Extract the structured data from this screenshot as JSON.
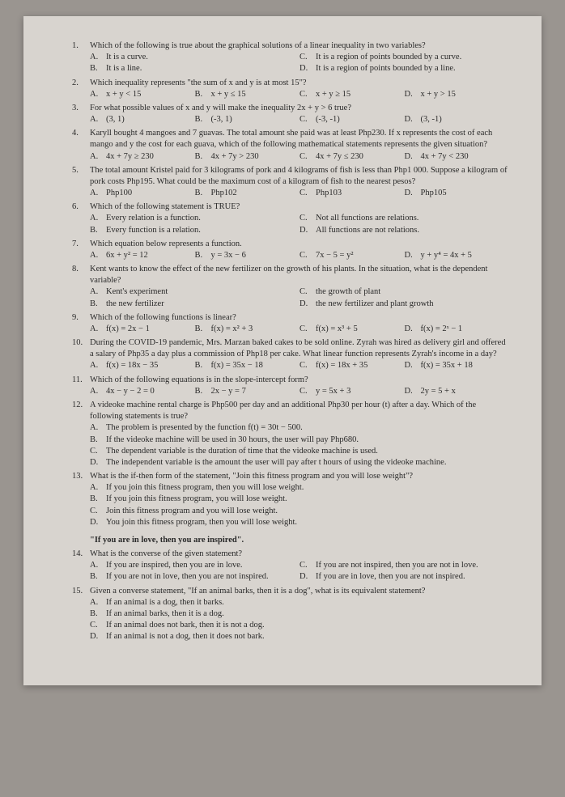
{
  "questions": [
    {
      "num": "1.",
      "text": "Which of the following is true about the graphical solutions of a linear inequality in two variables?",
      "choices": [
        {
          "label": "A.",
          "text": "It is a curve."
        },
        {
          "label": "B.",
          "text": "It is a line."
        },
        {
          "label": "C.",
          "text": "It is a region of points bounded by a curve."
        },
        {
          "label": "D.",
          "text": "It is a region of points bounded by a line."
        }
      ],
      "layout": "2col"
    },
    {
      "num": "2.",
      "text": "Which inequality represents \"the sum of x and y is at most 15\"?",
      "choices": [
        {
          "label": "A.",
          "text": "x + y < 15"
        },
        {
          "label": "B.",
          "text": "x + y ≤ 15"
        },
        {
          "label": "C.",
          "text": "x + y ≥ 15"
        },
        {
          "label": "D.",
          "text": "x + y > 15"
        }
      ],
      "layout": "4col"
    },
    {
      "num": "3.",
      "text": "For what possible values of x and y will make the inequality 2x + y > 6 true?",
      "choices": [
        {
          "label": "A.",
          "text": "(3, 1)"
        },
        {
          "label": "B.",
          "text": "(-3, 1)"
        },
        {
          "label": "C.",
          "text": "(-3, -1)"
        },
        {
          "label": "D.",
          "text": "(3, -1)"
        }
      ],
      "layout": "4col"
    },
    {
      "num": "4.",
      "text": "Karyll bought 4 mangoes and 7 guavas. The total amount she paid was at least Php230. If x represents the cost of each mango and y the cost for each guava, which of the following mathematical statements represents the given situation?",
      "choices": [
        {
          "label": "A.",
          "text": "4x + 7y ≥ 230"
        },
        {
          "label": "B.",
          "text": "4x + 7y > 230"
        },
        {
          "label": "C.",
          "text": "4x + 7y ≤ 230"
        },
        {
          "label": "D.",
          "text": "4x + 7y < 230"
        }
      ],
      "layout": "4col"
    },
    {
      "num": "5.",
      "text": "The total amount Kristel paid for 3 kilograms of pork and 4 kilograms of fish is less than Php1 000. Suppose a kilogram of pork costs Php195. What could be the maximum cost of a kilogram of fish to the nearest pesos?",
      "choices": [
        {
          "label": "A.",
          "text": "Php100"
        },
        {
          "label": "B.",
          "text": "Php102"
        },
        {
          "label": "C.",
          "text": "Php103"
        },
        {
          "label": "D.",
          "text": "Php105"
        }
      ],
      "layout": "4col"
    },
    {
      "num": "6.",
      "text": "Which of the following statement is TRUE?",
      "choices": [
        {
          "label": "A.",
          "text": "Every relation is a function."
        },
        {
          "label": "B.",
          "text": "Every function is a relation."
        },
        {
          "label": "C.",
          "text": "Not all functions are relations."
        },
        {
          "label": "D.",
          "text": "All functions are not relations."
        }
      ],
      "layout": "2col"
    },
    {
      "num": "7.",
      "text": "Which equation below represents a function.",
      "choices": [
        {
          "label": "A.",
          "text": "6x + y² = 12"
        },
        {
          "label": "B.",
          "text": "y = 3x − 6"
        },
        {
          "label": "C.",
          "text": "7x − 5 = y²"
        },
        {
          "label": "D.",
          "text": "y + y⁴ = 4x + 5"
        }
      ],
      "layout": "4col"
    },
    {
      "num": "8.",
      "text": "Kent wants to know the effect of the new fertilizer on the growth of his plants. In the situation, what is the dependent variable?",
      "choices": [
        {
          "label": "A.",
          "text": "Kent's experiment"
        },
        {
          "label": "B.",
          "text": "the new fertilizer"
        },
        {
          "label": "C.",
          "text": "the growth of plant"
        },
        {
          "label": "D.",
          "text": "the new fertilizer and plant growth"
        }
      ],
      "layout": "2col"
    },
    {
      "num": "9.",
      "text": "Which of the following functions is linear?",
      "choices": [
        {
          "label": "A.",
          "text": "f(x) = 2x − 1"
        },
        {
          "label": "B.",
          "text": "f(x) = x² + 3"
        },
        {
          "label": "C.",
          "text": "f(x) = x³ + 5"
        },
        {
          "label": "D.",
          "text": "f(x) = 2ˣ − 1"
        }
      ],
      "layout": "4col"
    },
    {
      "num": "10.",
      "text": "During the COVID-19 pandemic, Mrs. Marzan baked cakes to be sold online. Zyrah was hired as delivery girl and offered a salary of Php35 a day plus a commission of Php18 per cake. What linear function represents Zyrah's income in a day?",
      "choices": [
        {
          "label": "A.",
          "text": "f(x) = 18x − 35"
        },
        {
          "label": "B.",
          "text": "f(x) = 35x − 18"
        },
        {
          "label": "C.",
          "text": "f(x) = 18x + 35"
        },
        {
          "label": "D.",
          "text": "f(x) = 35x + 18"
        }
      ],
      "layout": "4col"
    },
    {
      "num": "11.",
      "text": "Which of the following equations is in the slope-intercept form?",
      "choices": [
        {
          "label": "A.",
          "text": "4x − y − 2 = 0"
        },
        {
          "label": "B.",
          "text": "2x − y = 7"
        },
        {
          "label": "C.",
          "text": "y = 5x + 3"
        },
        {
          "label": "D.",
          "text": "2y = 5 + x"
        }
      ],
      "layout": "4col"
    },
    {
      "num": "12.",
      "text": "A videoke machine rental charge is Php500 per day and an additional Php30 per hour (t) after a day. Which of the following statements is true?",
      "choices": [
        {
          "label": "A.",
          "text": "The problem is presented by the function f(t) = 30t − 500."
        },
        {
          "label": "B.",
          "text": "If the videoke machine will be used in 30 hours, the user will pay Php680."
        },
        {
          "label": "C.",
          "text": "The dependent variable is the duration of time that the videoke machine is used."
        },
        {
          "label": "D.",
          "text": "The independent variable is the amount the user will pay after t hours of using the videoke machine."
        }
      ],
      "layout": "1col"
    },
    {
      "num": "13.",
      "text": "What is the if-then form of the statement, \"Join this fitness program and you will lose weight\"?",
      "choices": [
        {
          "label": "A.",
          "text": "If you join this fitness program, then you will lose weight."
        },
        {
          "label": "B.",
          "text": "If you join this fitness program, you will lose weight."
        },
        {
          "label": "C.",
          "text": "Join this fitness program and you will lose weight."
        },
        {
          "label": "D.",
          "text": "You join this fitness program, then you will lose weight."
        }
      ],
      "layout": "1col"
    }
  ],
  "statement14": "\"If you are in love, then you are inspired\".",
  "q14": {
    "num": "14.",
    "text": "What is the converse of the given statement?",
    "choices": [
      {
        "label": "A.",
        "text": "If you are inspired, then you are in love."
      },
      {
        "label": "B.",
        "text": "If you are not in love, then you are not inspired."
      },
      {
        "label": "C.",
        "text": "If you are not inspired, then you are not in love."
      },
      {
        "label": "D.",
        "text": "If you are in love, then you are not inspired."
      }
    ]
  },
  "q15": {
    "num": "15.",
    "text": "Given a converse statement, \"If an animal barks, then it is a dog\", what is its equivalent statement?",
    "choices": [
      {
        "label": "A.",
        "text": "If an animal is a dog, then it barks."
      },
      {
        "label": "B.",
        "text": "If an animal barks, then it is a dog."
      },
      {
        "label": "C.",
        "text": "If an animal does not bark, then it is not a dog."
      },
      {
        "label": "D.",
        "text": "If an animal is not a dog, then it does not bark."
      }
    ]
  }
}
